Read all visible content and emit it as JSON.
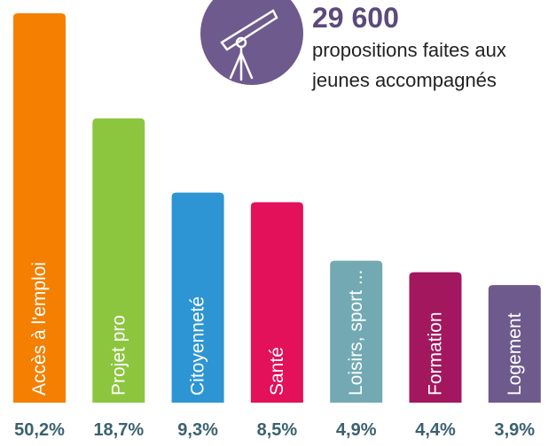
{
  "chart_data": {
    "type": "bar",
    "title": "29 600",
    "subtitle": "propositions faites aux jeunes accompagnés",
    "categories": [
      "Accès à l'emploi",
      "Projet pro",
      "Citoyenneté",
      "Santé",
      "Loisirs, sport ...",
      "Formation",
      "Logement"
    ],
    "values": [
      50.2,
      18.7,
      9.3,
      8.5,
      4.9,
      4.4,
      3.9
    ],
    "value_labels": [
      "50,2%",
      "18,7%",
      "9,3%",
      "8,5%",
      "4,9%",
      "4,4%",
      "3,9%"
    ],
    "colors": [
      "#f47f00",
      "#8cc63f",
      "#2d95d3",
      "#e3105a",
      "#72a9b3",
      "#a3175e",
      "#6e5a8c"
    ],
    "log_scale": true
  }
}
